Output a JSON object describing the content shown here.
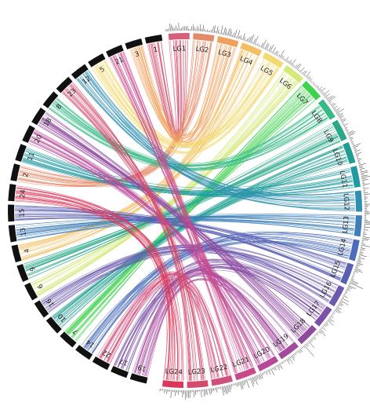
{
  "diagram": {
    "type": "circos-synteny",
    "right_segment_color_fallback": "#999999",
    "left_segment_color": "#111111",
    "histogram_color": "#333333",
    "right_segments": [
      {
        "label": "LG1",
        "color": "#d65f7a"
      },
      {
        "label": "LG2",
        "color": "#e58a69"
      },
      {
        "label": "LG3",
        "color": "#f0a05a"
      },
      {
        "label": "LG4",
        "color": "#f3bf63"
      },
      {
        "label": "LG5",
        "color": "#f2d970"
      },
      {
        "label": "LG6",
        "color": "#d6e87a"
      },
      {
        "label": "LG7",
        "color": "#3fd24d"
      },
      {
        "label": "LG8",
        "color": "#35b985"
      },
      {
        "label": "LG9",
        "color": "#2aa88a"
      },
      {
        "label": "LG10",
        "color": "#1f9d92"
      },
      {
        "label": "LG11",
        "color": "#1e9aa2"
      },
      {
        "label": "LG12",
        "color": "#2f8fb0"
      },
      {
        "label": "LG13",
        "color": "#3d7fb8"
      },
      {
        "label": "LG14",
        "color": "#4c6dbb"
      },
      {
        "label": "LG15",
        "color": "#5a5fb2"
      },
      {
        "label": "LG16",
        "color": "#6c59ad"
      },
      {
        "label": "LG17",
        "color": "#7d52a6"
      },
      {
        "label": "LG18",
        "color": "#8f4a9f"
      },
      {
        "label": "LG19",
        "color": "#a4499e"
      },
      {
        "label": "LG20",
        "color": "#b8479a"
      },
      {
        "label": "LG21",
        "color": "#c94a8b"
      },
      {
        "label": "LG22",
        "color": "#d04f7c"
      },
      {
        "label": "LG23",
        "color": "#d34b6d"
      },
      {
        "label": "LG24",
        "color": "#d9385b"
      }
    ],
    "left_segments": [
      {
        "label": "19"
      },
      {
        "label": "17"
      },
      {
        "label": "22"
      },
      {
        "label": "14"
      },
      {
        "label": "7"
      },
      {
        "label": "10"
      },
      {
        "label": "16"
      },
      {
        "label": "6"
      },
      {
        "label": "9"
      },
      {
        "label": "4"
      },
      {
        "label": "13"
      },
      {
        "label": "15"
      },
      {
        "label": "24"
      },
      {
        "label": "2"
      },
      {
        "label": "11"
      },
      {
        "label": "20"
      },
      {
        "label": "18"
      },
      {
        "label": "8"
      },
      {
        "label": "23"
      },
      {
        "label": "12"
      },
      {
        "label": "5"
      },
      {
        "label": "21"
      },
      {
        "label": "3"
      },
      {
        "label": "1"
      }
    ]
  }
}
